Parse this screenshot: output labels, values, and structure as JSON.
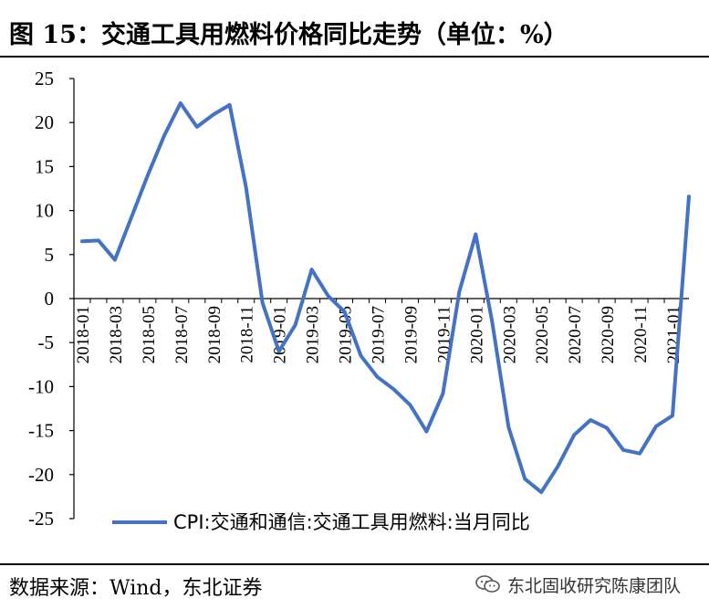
{
  "figure": {
    "title": "图 15：交通工具用燃料价格同比走势（单位：%）",
    "source": "数据来源：Wind，东北证券",
    "watermark": "东北固收研究陈康团队",
    "watermark_icon": "wechat-logo-icon"
  },
  "colors": {
    "series": "#4472C4",
    "axis": "#000000"
  },
  "chart_data": {
    "type": "line",
    "title": "",
    "xlabel": "",
    "ylabel": "",
    "ylim": [
      -25,
      25
    ],
    "yticks": [
      25,
      20,
      15,
      10,
      5,
      0,
      -5,
      -10,
      -15,
      -20,
      -25
    ],
    "grid": false,
    "legend": "bottom-center",
    "x": [
      "2018-01",
      "2018-02",
      "2018-03",
      "2018-04",
      "2018-05",
      "2018-06",
      "2018-07",
      "2018-08",
      "2018-09",
      "2018-10",
      "2018-11",
      "2018-12",
      "2019-01",
      "2019-02",
      "2019-03",
      "2019-04",
      "2019-05",
      "2019-06",
      "2019-07",
      "2019-08",
      "2019-09",
      "2019-10",
      "2019-11",
      "2019-12",
      "2020-01",
      "2020-02",
      "2020-03",
      "2020-04",
      "2020-05",
      "2020-06",
      "2020-07",
      "2020-08",
      "2020-09",
      "2020-10",
      "2020-11",
      "2020-12",
      "2021-01",
      "2021-02"
    ],
    "xtick_labels": [
      "2018-01",
      "2018-03",
      "2018-05",
      "2018-07",
      "2018-09",
      "2018-11",
      "2019-01",
      "2019-03",
      "2019-05",
      "2019-07",
      "2019-09",
      "2019-11",
      "2020-01",
      "2020-03",
      "2020-05",
      "2020-07",
      "2020-09",
      "2020-11",
      "2021-01"
    ],
    "series": [
      {
        "name": "CPI:交通和通信:交通工具用燃料:当月同比",
        "values": [
          6.5,
          6.6,
          4.4,
          9.2,
          14.0,
          18.5,
          22.2,
          19.5,
          20.9,
          22.0,
          12.6,
          -0.5,
          -6.0,
          -3.0,
          3.3,
          0.3,
          -1.5,
          -6.5,
          -8.9,
          -10.3,
          -12.1,
          -15.1,
          -10.8,
          0.8,
          7.3,
          -2.6,
          -14.6,
          -20.5,
          -22.0,
          -19.1,
          -15.5,
          -13.8,
          -14.7,
          -17.2,
          -17.6,
          -14.5,
          -13.3,
          11.6
        ]
      }
    ]
  }
}
